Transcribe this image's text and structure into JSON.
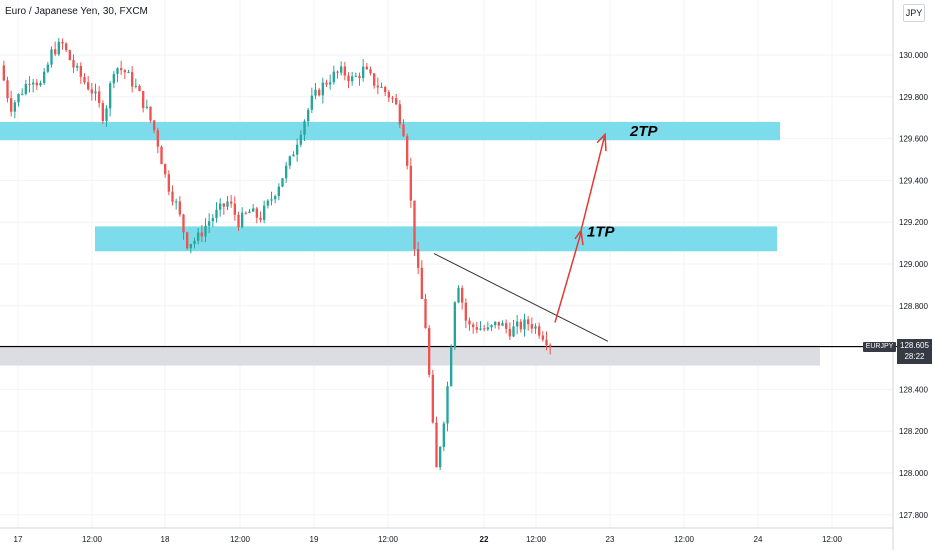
{
  "chart": {
    "title": "Euro / Japanese Yen, 30, FXCM",
    "currency_label": "JPY",
    "symbol_tag": "EURJPY",
    "price_tag": "128.605",
    "countdown": "28:22",
    "annotations": [
      "1TP",
      "2TP"
    ]
  },
  "colors": {
    "up": "#26a69a",
    "down": "#ef5350",
    "zone": "#7ddcec",
    "support_zone": "#dcdde3",
    "arrow": "#e53935",
    "trendline": "#333333",
    "axis_text": "#131722",
    "grid": "#f0f3fa"
  },
  "chart_data": {
    "type": "candlestick",
    "title": "Euro / Japanese Yen, 30, FXCM",
    "ylim": [
      127.7,
      130.2
    ],
    "y_ticks": [
      "127.800",
      "128.000",
      "128.200",
      "128.400",
      "128.600",
      "128.800",
      "129.000",
      "129.200",
      "129.400",
      "129.600",
      "129.800",
      "130.000"
    ],
    "x_ticks": [
      "17",
      "12:00",
      "18",
      "12:00",
      "19",
      "12:00",
      "22",
      "12:00",
      "23",
      "12:00",
      "24",
      "12:00"
    ],
    "close_path": [
      129.95,
      129.75,
      129.82,
      129.9,
      129.85,
      130.02,
      130.05,
      129.95,
      129.88,
      129.82,
      129.7,
      129.95,
      129.92,
      129.85,
      129.75,
      129.62,
      129.4,
      129.28,
      129.1,
      129.12,
      129.2,
      129.25,
      129.3,
      129.2,
      129.25,
      129.22,
      129.3,
      129.4,
      129.5,
      129.65,
      129.78,
      129.85,
      129.9,
      129.92,
      129.88,
      129.93,
      129.87,
      129.83,
      129.78,
      129.62,
      129.05,
      128.7,
      128.0,
      128.35,
      128.95,
      128.7,
      128.7,
      128.68,
      128.72,
      128.68,
      128.7,
      128.72,
      128.68,
      128.62
    ],
    "zones": [
      {
        "name": "upper-zone",
        "y_range": [
          129.64,
          129.68
        ]
      },
      {
        "name": "middle-zone",
        "y_range": [
          129.08,
          129.18
        ]
      },
      {
        "name": "support-zone",
        "y_range": [
          128.5,
          128.6
        ]
      }
    ],
    "last_price": 128.605
  }
}
